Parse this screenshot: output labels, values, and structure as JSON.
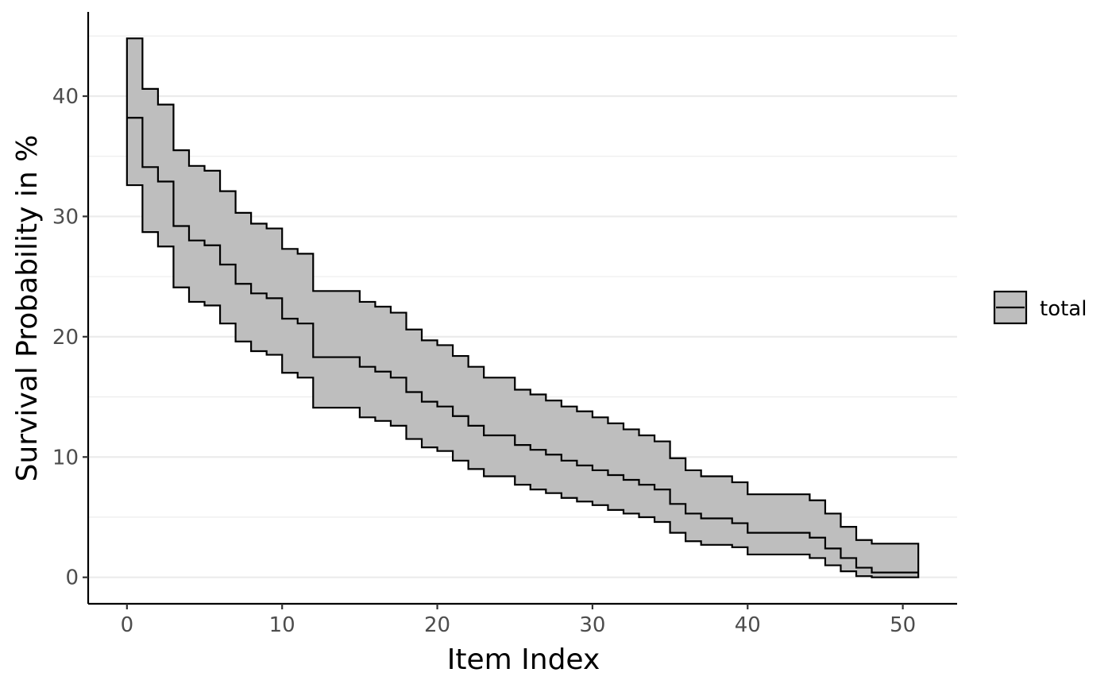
{
  "chart_data": {
    "type": "line",
    "title": "",
    "xlabel": "Item Index",
    "ylabel": "Survival Probability in %",
    "xlim": [
      -2.5,
      53.5
    ],
    "ylim": [
      -2.2,
      47.0
    ],
    "x_ticks": [
      0,
      10,
      20,
      30,
      40,
      50
    ],
    "x_tick_labels": [
      "0",
      "10",
      "20",
      "30",
      "40",
      "50"
    ],
    "y_ticks": [
      0,
      10,
      20,
      30,
      40
    ],
    "y_tick_labels": [
      "0",
      "10",
      "20",
      "30",
      "40"
    ],
    "y_minor_ticks": [
      5,
      15,
      25,
      35,
      45
    ],
    "grid": true,
    "step": true,
    "legend": {
      "position": "right",
      "entries": [
        "total"
      ]
    },
    "series": [
      {
        "name": "total",
        "color": "#000000",
        "ribbon_color": "#bebebe",
        "x": [
          0,
          1,
          2,
          3,
          4,
          5,
          6,
          7,
          8,
          9,
          10,
          11,
          12,
          13,
          14,
          15,
          16,
          17,
          18,
          19,
          20,
          21,
          22,
          23,
          24,
          25,
          26,
          27,
          28,
          29,
          30,
          31,
          32,
          33,
          34,
          35,
          36,
          37,
          38,
          39,
          40,
          41,
          42,
          43,
          44,
          45,
          46,
          47,
          48,
          49,
          50,
          51
        ],
        "y": [
          38.2,
          34.1,
          32.9,
          29.2,
          28.0,
          27.6,
          26.0,
          24.4,
          23.6,
          23.2,
          21.5,
          21.1,
          18.3,
          18.3,
          18.3,
          17.5,
          17.1,
          16.6,
          15.4,
          14.6,
          14.2,
          13.4,
          12.6,
          11.8,
          11.8,
          11.0,
          10.6,
          10.2,
          9.7,
          9.3,
          8.9,
          8.5,
          8.1,
          7.7,
          7.3,
          6.1,
          5.3,
          4.9,
          4.9,
          4.5,
          3.7,
          3.7,
          3.7,
          3.7,
          3.3,
          2.4,
          1.6,
          0.8,
          0.4,
          0.4,
          0.4,
          0.4
        ],
        "lower": [
          32.6,
          28.7,
          27.5,
          24.1,
          22.9,
          22.6,
          21.1,
          19.6,
          18.8,
          18.5,
          17.0,
          16.6,
          14.1,
          14.1,
          14.1,
          13.3,
          13.0,
          12.6,
          11.5,
          10.8,
          10.5,
          9.7,
          9.0,
          8.4,
          8.4,
          7.7,
          7.3,
          7.0,
          6.6,
          6.3,
          6.0,
          5.6,
          5.3,
          5.0,
          4.6,
          3.7,
          3.0,
          2.7,
          2.7,
          2.5,
          1.9,
          1.9,
          1.9,
          1.9,
          1.6,
          1.0,
          0.5,
          0.1,
          0.0,
          0.0,
          0.0,
          0.0
        ],
        "upper": [
          44.8,
          40.6,
          39.3,
          35.5,
          34.2,
          33.8,
          32.1,
          30.3,
          29.4,
          29.0,
          27.3,
          26.9,
          23.8,
          23.8,
          23.8,
          22.9,
          22.5,
          22.0,
          20.6,
          19.7,
          19.3,
          18.4,
          17.5,
          16.6,
          16.6,
          15.6,
          15.2,
          14.7,
          14.2,
          13.8,
          13.3,
          12.8,
          12.3,
          11.8,
          11.3,
          9.9,
          8.9,
          8.4,
          8.4,
          7.9,
          6.9,
          6.9,
          6.9,
          6.9,
          6.4,
          5.3,
          4.2,
          3.1,
          2.8,
          2.8,
          2.8,
          2.8
        ]
      }
    ]
  }
}
